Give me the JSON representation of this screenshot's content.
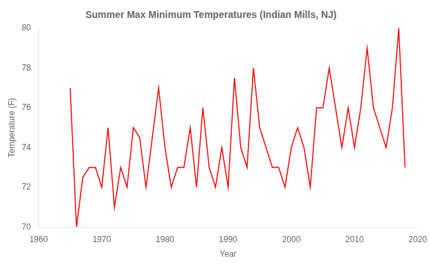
{
  "chart_data": {
    "type": "line",
    "title": "Summer Max Minimum Temperatures (Indian Mills, NJ)",
    "xlabel": "Year",
    "ylabel": "Temperature (F)",
    "color": "#ff0000",
    "x": [
      1965,
      1966,
      1967,
      1968,
      1969,
      1970,
      1971,
      1972,
      1973,
      1974,
      1975,
      1976,
      1977,
      1978,
      1979,
      1980,
      1981,
      1982,
      1983,
      1984,
      1985,
      1986,
      1987,
      1988,
      1989,
      1990,
      1991,
      1992,
      1993,
      1994,
      1995,
      1996,
      1997,
      1998,
      1999,
      2000,
      2001,
      2002,
      2003,
      2004,
      2005,
      2006,
      2007,
      2008,
      2009,
      2010,
      2011,
      2012,
      2013,
      2014,
      2015,
      2016,
      2017,
      2018
    ],
    "values": [
      77.0,
      70.0,
      72.5,
      73.0,
      73.0,
      72.0,
      75.0,
      71.0,
      73.0,
      72.0,
      75.0,
      74.5,
      72.0,
      74.5,
      77.0,
      74.0,
      72.0,
      73.0,
      73.0,
      75.0,
      72.0,
      76.0,
      73.0,
      72.0,
      74.0,
      72.0,
      77.5,
      74.0,
      73.0,
      78.0,
      75.0,
      74.0,
      73.0,
      73.0,
      72.0,
      74.0,
      75.0,
      74.0,
      72.0,
      76.0,
      76.0,
      78.0,
      76.0,
      74.0,
      76.0,
      74.0,
      76.0,
      79.0,
      76.0,
      75.0,
      74.0,
      76.0,
      80.0,
      73.0
    ],
    "xlim": [
      1960,
      2020
    ],
    "ylim": [
      70,
      80
    ],
    "xticks": [
      1960,
      1970,
      1980,
      1990,
      2000,
      2010,
      2020
    ],
    "yticks": [
      70,
      72,
      74,
      76,
      78,
      80
    ],
    "grid": false
  }
}
